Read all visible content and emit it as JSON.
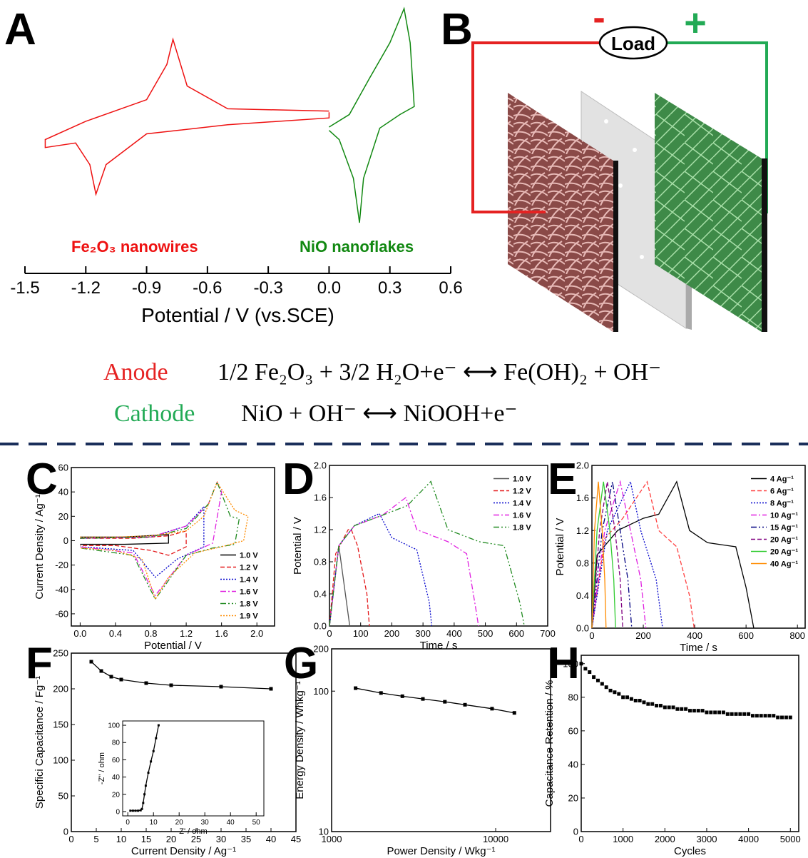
{
  "panel_letters": [
    "A",
    "B",
    "C",
    "D",
    "E",
    "F",
    "G",
    "H"
  ],
  "diagram": {
    "load": "Load",
    "minus": "-",
    "plus": "+"
  },
  "equations": [
    {
      "label": "Anode",
      "reaction": "1/2 Fe₂O₃ + 3/2 H₂O+e⁻ ⟷ Fe(OH)₂ + OH⁻"
    },
    {
      "label": "Cathode",
      "reaction": "NiO + OH⁻ ⟷ NiOOH+e⁻"
    }
  ],
  "chart_data": [
    {
      "type": "line",
      "x_label": "Potential / V (vs.SCE)",
      "xlim": [
        -1.5,
        0.6
      ],
      "xticks": [
        -1.5,
        -1.2,
        -0.9,
        -0.6,
        -0.3,
        {
          "value": 0,
          "label": "0.0"
        },
        0.3,
        0.6
      ],
      "series": [
        {
          "name": "Fe₂O₃ nanowires",
          "color": "#ee1111",
          "x": [
            0,
            -0.5,
            -0.7,
            -0.77,
            -0.8,
            -0.9,
            -1.2,
            -1.4,
            -1.4,
            -1.25,
            -1.18,
            -1.15,
            -1.1,
            -0.9,
            -0.5,
            0,
            0
          ],
          "values": [
            9,
            11,
            31,
            72,
            50,
            19,
            0,
            -16,
            -23,
            -19,
            -38,
            -64,
            -38,
            -11,
            -3,
            3,
            8
          ]
        },
        {
          "name": "NiO nanoflakes",
          "color": "#118811",
          "x": [
            0,
            0.1,
            0.2,
            0.3,
            0.37,
            0.4,
            0.42,
            0.35,
            0.25,
            0.17,
            0.15,
            0.12,
            0.05,
            0
          ],
          "values": [
            -5,
            6,
            38,
            69,
            99,
            69,
            13,
            6,
            -6,
            -50,
            -89,
            -50,
            -16,
            -8
          ]
        }
      ]
    },
    {
      "type": "line",
      "x_label": "Potential / V",
      "y_label": "Current Density / Ag⁻¹",
      "xlim": [
        -0.1,
        2.2
      ],
      "ylim": [
        -70,
        60
      ],
      "xticks": [
        {
          "value": 0,
          "label": "0.0"
        },
        0.4,
        0.8,
        1.2,
        1.6,
        {
          "value": 2,
          "label": "2.0"
        }
      ],
      "yticks": [
        -60,
        -40,
        -20,
        0,
        20,
        40,
        60
      ],
      "legend": "lower right",
      "series": [
        {
          "name": "1.0 V",
          "color": "#000000",
          "dash": "solid",
          "x": [
            0,
            0.5,
            1.0,
            1.0,
            0.5,
            0
          ],
          "values": [
            3,
            3,
            5,
            -2,
            -3,
            -3
          ]
        },
        {
          "name": "1.2 V",
          "color": "#e41a1c",
          "dash": "dashed",
          "x": [
            0,
            0.6,
            1.0,
            1.2,
            1.2,
            1.0,
            0.8,
            0.4,
            0
          ],
          "values": [
            2,
            2,
            4,
            8,
            -5,
            -12,
            -8,
            -4,
            -4
          ]
        },
        {
          "name": "1.4 V",
          "color": "#0000cc",
          "dash": "dotted",
          "x": [
            0,
            0.8,
            1.2,
            1.4,
            1.4,
            1.1,
            0.85,
            0.6,
            0
          ],
          "values": [
            2,
            3,
            12,
            28,
            -5,
            -15,
            -30,
            -8,
            -5
          ]
        },
        {
          "name": "1.6 V",
          "color": "#e020e0",
          "dash": "dashdot",
          "x": [
            0,
            0.8,
            1.2,
            1.45,
            1.55,
            1.6,
            1.5,
            1.2,
            0.85,
            0.6,
            0
          ],
          "values": [
            2,
            3,
            12,
            30,
            48,
            40,
            -2,
            -12,
            -45,
            -10,
            -5
          ]
        },
        {
          "name": "1.8 V",
          "color": "#228b22",
          "dash": "dashdotdot",
          "x": [
            0,
            0.8,
            1.2,
            1.45,
            1.55,
            1.7,
            1.8,
            1.75,
            1.5,
            1.2,
            0.85,
            0.6,
            0
          ],
          "values": [
            2,
            3,
            10,
            30,
            48,
            20,
            18,
            -3,
            -6,
            -12,
            -48,
            -12,
            -6
          ]
        },
        {
          "name": "1.9 V",
          "color": "#ff8c00",
          "dash": "dotted",
          "x": [
            0,
            0.4,
            0.8,
            1.2,
            1.4,
            1.55,
            1.75,
            1.9,
            1.85,
            1.6,
            1.3,
            1.0,
            0.85,
            0.7,
            0.4,
            0
          ],
          "values": [
            3,
            3,
            4,
            8,
            20,
            48,
            25,
            20,
            0,
            -5,
            -10,
            -30,
            -48,
            -15,
            -8,
            -6
          ]
        }
      ]
    },
    {
      "type": "line",
      "x_label": "Time / s",
      "y_label": "Potential / V",
      "xlim": [
        0,
        700
      ],
      "ylim": [
        0,
        2
      ],
      "xticks": [
        0,
        100,
        200,
        300,
        400,
        500,
        600,
        700
      ],
      "yticks": [
        {
          "value": 0,
          "label": "0.0"
        },
        0.4,
        0.8,
        1.2,
        1.6,
        {
          "value": 2,
          "label": "2.0"
        }
      ],
      "legend": "upper right",
      "series": [
        {
          "name": "1.0 V",
          "color": "#555555",
          "dash": "solid",
          "x": [
            0,
            30,
            65
          ],
          "values": [
            0,
            1.0,
            0
          ]
        },
        {
          "name": "1.2 V",
          "color": "#e41a1c",
          "dash": "dashed",
          "x": [
            0,
            20,
            60,
            70,
            90,
            120,
            128
          ],
          "values": [
            0,
            0.9,
            1.2,
            1.2,
            1.0,
            0.4,
            0
          ]
        },
        {
          "name": "1.4 V",
          "color": "#0000cc",
          "dash": "dotted",
          "x": [
            0,
            30,
            80,
            160,
            200,
            280,
            320,
            328
          ],
          "values": [
            0,
            1.0,
            1.25,
            1.4,
            1.1,
            0.95,
            0.3,
            0
          ]
        },
        {
          "name": "1.6 V",
          "color": "#e020e0",
          "dash": "dashdot",
          "x": [
            0,
            30,
            80,
            170,
            245,
            280,
            380,
            440,
            470,
            478
          ],
          "values": [
            0,
            1.0,
            1.25,
            1.38,
            1.6,
            1.2,
            1.05,
            0.9,
            0.2,
            0
          ]
        },
        {
          "name": "1.8 V",
          "color": "#228b22",
          "dash": "dashdotdot",
          "x": [
            0,
            30,
            80,
            170,
            250,
            325,
            380,
            480,
            560,
            610,
            625
          ],
          "values": [
            0,
            1.0,
            1.25,
            1.38,
            1.5,
            1.8,
            1.2,
            1.05,
            1.0,
            0.3,
            0
          ]
        }
      ]
    },
    {
      "type": "line",
      "x_label": "Time / s",
      "y_label": "Potential / V",
      "xlim": [
        0,
        830
      ],
      "ylim": [
        0,
        2
      ],
      "xticks": [
        0,
        200,
        400,
        600,
        800
      ],
      "yticks": [
        {
          "value": 0,
          "label": "0.0"
        },
        0.4,
        0.8,
        1.2,
        1.6,
        {
          "value": 2,
          "label": "2.0"
        }
      ],
      "legend": "upper right",
      "series": [
        {
          "name": "4 Ag⁻¹",
          "color": "#000000",
          "dash": "solid",
          "x": [
            0,
            20,
            100,
            200,
            260,
            330,
            380,
            450,
            560,
            600,
            630
          ],
          "values": [
            0,
            0.9,
            1.2,
            1.35,
            1.4,
            1.8,
            1.2,
            1.05,
            1.0,
            0.5,
            0
          ]
        },
        {
          "name": "6 Ag⁻¹",
          "color": "#ff4040",
          "dash": "dashed",
          "x": [
            0,
            50,
            120,
            215,
            260,
            330,
            380,
            398
          ],
          "values": [
            0,
            1.1,
            1.35,
            1.8,
            1.2,
            1.0,
            0.4,
            0
          ]
        },
        {
          "name": "8 Ag⁻¹",
          "color": "#0000cc",
          "dash": "dotted",
          "x": [
            0,
            60,
            150,
            190,
            250,
            275
          ],
          "values": [
            0,
            1.2,
            1.8,
            1.2,
            0.6,
            0
          ]
        },
        {
          "name": "10 Ag⁻¹",
          "color": "#e020e0",
          "dash": "dashdot",
          "x": [
            0,
            50,
            110,
            150,
            190,
            210
          ],
          "values": [
            0,
            1.2,
            1.8,
            1.2,
            0.6,
            0
          ]
        },
        {
          "name": "15 Ag⁻¹",
          "color": "#000080",
          "dash": "dashdotdot",
          "x": [
            0,
            40,
            80,
            110,
            140,
            155
          ],
          "values": [
            0,
            1.2,
            1.8,
            1.2,
            0.6,
            0
          ]
        },
        {
          "name": "20 Ag⁻¹",
          "color": "#800080",
          "dash": "dashed",
          "x": [
            0,
            30,
            60,
            90,
            110,
            120
          ],
          "values": [
            0,
            1.2,
            1.8,
            1.2,
            0.6,
            0
          ]
        },
        {
          "name": "20 Ag⁻¹",
          "color": "#33cc33",
          "dash": "solid",
          "x": [
            0,
            20,
            45,
            70,
            85,
            92
          ],
          "values": [
            0,
            1.2,
            1.8,
            1.2,
            0.6,
            0
          ]
        },
        {
          "name": "40 Ag⁻¹",
          "color": "#ff8c00",
          "dash": "solid",
          "x": [
            0,
            10,
            25,
            40,
            50,
            55
          ],
          "values": [
            0,
            1.2,
            1.8,
            1.2,
            0.6,
            0
          ]
        }
      ]
    },
    {
      "type": "line",
      "x_label": "Current Density / Ag⁻¹",
      "y_label": "Specifici Capacitance / Fg⁻¹",
      "xlim": [
        0,
        45
      ],
      "ylim": [
        0,
        250
      ],
      "xticks": [
        0,
        5,
        10,
        15,
        20,
        25,
        30,
        35,
        40,
        45
      ],
      "yticks": [
        0,
        50,
        100,
        150,
        200,
        250
      ],
      "markers": "square",
      "series": [
        {
          "color": "#000000",
          "x": [
            4,
            6,
            8,
            10,
            15,
            20,
            30,
            40
          ],
          "values": [
            238,
            225,
            217,
            213,
            208,
            205,
            203,
            200
          ]
        }
      ]
    },
    {
      "type": "line",
      "x_label": "Z' / ohm",
      "y_label": "-Z'' / ohm",
      "xlim": [
        -2,
        53
      ],
      "ylim": [
        -5,
        105
      ],
      "xticks": [
        0,
        10,
        20,
        30,
        40,
        50
      ],
      "yticks": [
        0,
        20,
        40,
        60,
        80,
        100
      ],
      "markers": "square",
      "series": [
        {
          "color": "#000000",
          "x": [
            1,
            2,
            3,
            4,
            5,
            5.5,
            6,
            6.5,
            7,
            8,
            9,
            10,
            11,
            12
          ],
          "values": [
            1,
            1,
            1,
            1,
            1.5,
            3,
            10,
            20,
            30,
            45,
            58,
            70,
            85,
            100
          ]
        }
      ]
    },
    {
      "type": "line",
      "x_label": "Power Density / Wkg⁻¹",
      "y_label": "Energy Density / Whkg⁻¹",
      "xscale": "log",
      "yscale": "log",
      "xlim": [
        1000,
        21600
      ],
      "ylim": [
        10,
        200
      ],
      "xticks": [
        1000,
        10000
      ],
      "yticks": [
        10,
        100,
        200
      ],
      "markers": "square",
      "series": [
        {
          "color": "#000000",
          "x": [
            1400,
            2000,
            2700,
            3600,
            4900,
            6500,
            9500,
            13000
          ],
          "values": [
            105,
            97,
            92,
            88,
            84,
            80,
            75,
            70
          ]
        }
      ]
    },
    {
      "type": "scatter",
      "x_label": "Cycles",
      "y_label": "Capacitance Retention / %",
      "xlim": [
        0,
        5200
      ],
      "ylim": [
        0,
        105
      ],
      "xticks": [
        0,
        1000,
        2000,
        3000,
        4000,
        5000
      ],
      "yticks": [
        0,
        20,
        40,
        60,
        80,
        100
      ],
      "markers": "square",
      "series": [
        {
          "color": "#000000",
          "x": [
            0,
            100,
            200,
            300,
            400,
            500,
            600,
            700,
            800,
            900,
            1000,
            1100,
            1200,
            1300,
            1400,
            1500,
            1600,
            1700,
            1800,
            1900,
            2000,
            2100,
            2200,
            2300,
            2400,
            2500,
            2600,
            2700,
            2800,
            2900,
            3000,
            3100,
            3200,
            3300,
            3400,
            3500,
            3600,
            3700,
            3800,
            3900,
            4000,
            4100,
            4200,
            4300,
            4400,
            4500,
            4600,
            4700,
            4800,
            4900,
            5000
          ],
          "values": [
            100,
            97,
            95,
            92,
            90,
            88,
            86,
            84,
            83,
            82,
            80,
            80,
            79,
            78,
            78,
            77,
            76,
            76,
            75,
            75,
            74,
            74,
            74,
            73,
            73,
            73,
            72,
            72,
            72,
            72,
            71,
            71,
            71,
            71,
            71,
            70,
            70,
            70,
            70,
            70,
            70,
            69,
            69,
            69,
            69,
            69,
            69,
            68,
            68,
            68,
            68
          ]
        }
      ]
    }
  ]
}
